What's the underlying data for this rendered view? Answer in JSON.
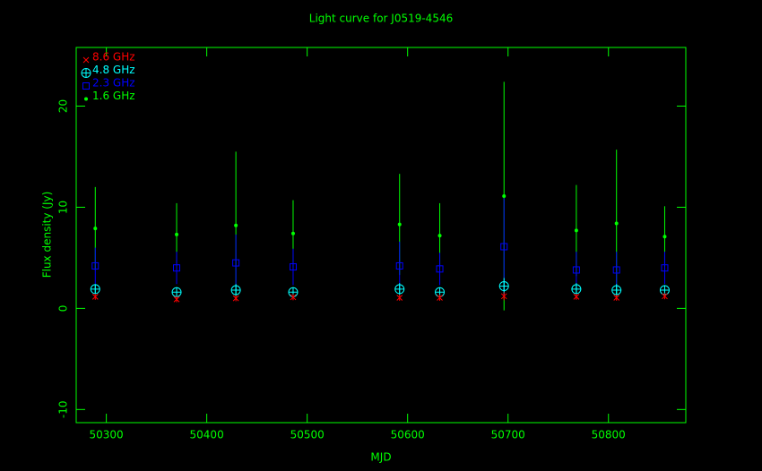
{
  "chart_data": {
    "type": "scatter",
    "title": "Light curve for J0519-4546",
    "x_label": "MJD",
    "y_label": "Flux density (Jy)",
    "x": [
      50289,
      50370,
      50429,
      50486,
      50592,
      50632,
      50696,
      50768,
      50808,
      50856
    ],
    "series": [
      {
        "name": "8.6 GHz",
        "color": "#ff0000",
        "marker": "x",
        "values": [
          1.15,
          0.9,
          1.0,
          1.1,
          1.05,
          1.05,
          1.2,
          1.15,
          1.05,
          1.2
        ],
        "errors": [
          0.3,
          0.3,
          0.3,
          0.3,
          0.3,
          0.3,
          0.4,
          0.3,
          0.3,
          0.3
        ]
      },
      {
        "name": "4.8 GHz",
        "color": "#00ffff",
        "marker": "circle-plus",
        "values": [
          1.9,
          1.6,
          1.8,
          1.6,
          1.9,
          1.6,
          2.2,
          1.9,
          1.8,
          1.8
        ],
        "errors": [
          0.5,
          0.5,
          0.6,
          0.5,
          0.6,
          0.5,
          0.8,
          0.6,
          0.6,
          0.5
        ]
      },
      {
        "name": "2.3 GHz",
        "color": "#0000ff",
        "marker": "square",
        "values": [
          4.2,
          4.0,
          4.5,
          4.1,
          4.2,
          3.9,
          6.1,
          3.8,
          3.8,
          4.0
        ],
        "errors": [
          1.8,
          1.6,
          2.8,
          1.8,
          2.4,
          1.6,
          4.8,
          1.8,
          1.8,
          1.6
        ]
      },
      {
        "name": "1.6 GHz",
        "color": "#00ff00",
        "marker": "dot",
        "values": [
          7.9,
          7.3,
          8.2,
          7.4,
          8.3,
          7.2,
          11.1,
          7.7,
          8.4,
          7.1
        ],
        "errors": [
          4.1,
          3.1,
          7.3,
          3.3,
          5.0,
          3.2,
          11.3,
          4.5,
          7.3,
          3.0
        ]
      }
    ],
    "xlim": [
      50270,
      50877
    ],
    "ylim": [
      -11.3,
      25.8
    ],
    "xticks": [
      50300,
      50400,
      50500,
      50600,
      50700,
      50800
    ],
    "yticks": [
      -10,
      0,
      10,
      20
    ],
    "axis_color": "#00ff00",
    "background": "#000000",
    "legend": "upper-left"
  }
}
